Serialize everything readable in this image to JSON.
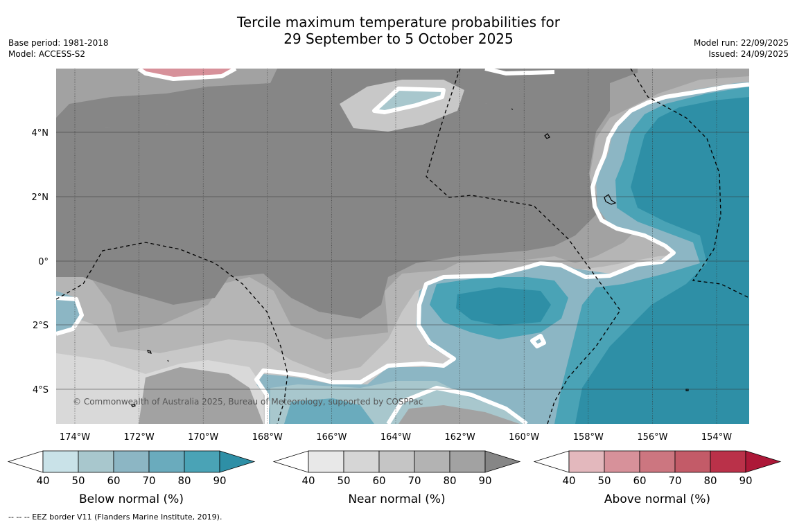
{
  "header": {
    "title_line1": "Tercile maximum temperature probabilities for",
    "title_line2": "29 September to 5 October 2025",
    "base_period": "Base period: 1981-2018",
    "model": "Model: ACCESS-S2",
    "model_run": "Model run: 22/09/2025",
    "issued": "Issued: 24/09/2025"
  },
  "map": {
    "copyright": "© Commonwealth of Australia 2025, Bureau of Meteorology, supported by COSPPac",
    "lon_labels": [
      "174°W",
      "172°W",
      "170°W",
      "168°W",
      "166°W",
      "164°W",
      "162°W",
      "160°W",
      "158°W",
      "156°W",
      "154°W"
    ],
    "lat_labels": [
      "4°N",
      "2°N",
      "0°",
      "2°S",
      "4°S"
    ],
    "colors": {
      "near_dark": "#868686",
      "near_mid": "#a2a2a2",
      "near_light": "#b5b5b5",
      "near_lighter": "#c8c8c8",
      "near_lightest": "#d9d9d9",
      "below_dark": "#2e8fa6",
      "below_mid": "#4aa3b6",
      "below_light": "#6aabbd",
      "below_lighter": "#8cb6c4",
      "below_lightest": "#a8c7cd",
      "above": "#d7919a"
    }
  },
  "legends": [
    {
      "label": "Below normal (%)",
      "ticks": [
        "40",
        "50",
        "60",
        "70",
        "80",
        "90"
      ],
      "colors": [
        "#ffffff",
        "#c9e2e8",
        "#a8c7cd",
        "#8cb6c4",
        "#6aabbd",
        "#4aa3b6",
        "#2e8fa6"
      ]
    },
    {
      "label": "Near normal (%)",
      "ticks": [
        "40",
        "50",
        "60",
        "70",
        "80",
        "90"
      ],
      "colors": [
        "#ffffff",
        "#e8e8e8",
        "#d6d6d6",
        "#c5c5c5",
        "#b3b3b3",
        "#a2a2a2",
        "#868686"
      ]
    },
    {
      "label": "Above normal (%)",
      "ticks": [
        "40",
        "50",
        "60",
        "70",
        "80",
        "90"
      ],
      "colors": [
        "#ffffff",
        "#e3b8bd",
        "#d7919a",
        "#cc7680",
        "#c35b68",
        "#ba3149",
        "#ad1838"
      ]
    }
  ],
  "footer": {
    "eez_note": "--  --  -- EEZ border V11 (Flanders Marine Institute, 2019)."
  }
}
